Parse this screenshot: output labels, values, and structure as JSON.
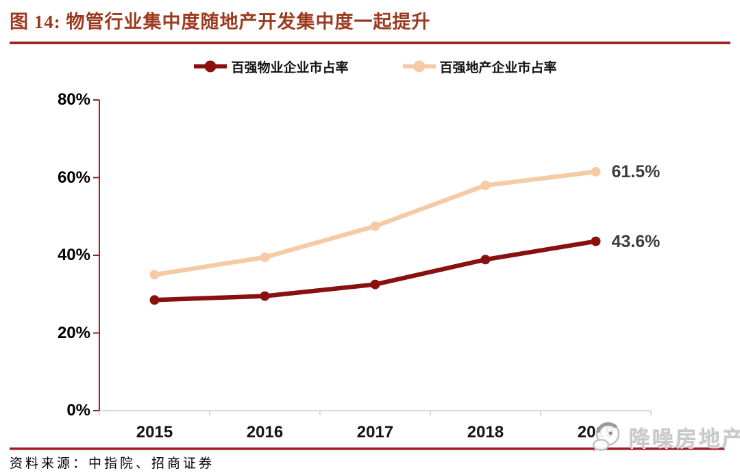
{
  "figure": {
    "title": "图 14:  物管行业集中度随地产开发集中度一起提升",
    "source": "资料来源：中指院、招商证券",
    "watermark": "降噪房地产"
  },
  "colors": {
    "title": "#9c3a1f",
    "rule": "#9a1e22",
    "y_axis": "#a11e22",
    "x_axis": "#d9d9d9",
    "series_property_mgmt": "#8a1010",
    "series_developer": "#f5cba4",
    "data_label": "#3d3d3d",
    "tick_label": "#000000",
    "watermark": "#c9c9c9"
  },
  "chart_data": {
    "type": "line",
    "x": [
      "2015",
      "2016",
      "2017",
      "2018",
      "2019"
    ],
    "series": [
      {
        "name": "百强物业企业市占率",
        "color": "#8a1010",
        "values": [
          28.5,
          29.5,
          32.5,
          38.9,
          43.6
        ],
        "end_label": "43.6%"
      },
      {
        "name": "百强地产企业市占率",
        "color": "#f5cba4",
        "values": [
          35.0,
          39.5,
          47.5,
          58.0,
          61.5
        ],
        "end_label": "61.5%"
      }
    ],
    "ylim": [
      0,
      80
    ],
    "ytick_labels": [
      "0%",
      "20%",
      "40%",
      "60%",
      "80%"
    ],
    "xlabel": "",
    "ylabel": "",
    "grid": false,
    "legend_position": "top-center",
    "marker": "circle"
  }
}
